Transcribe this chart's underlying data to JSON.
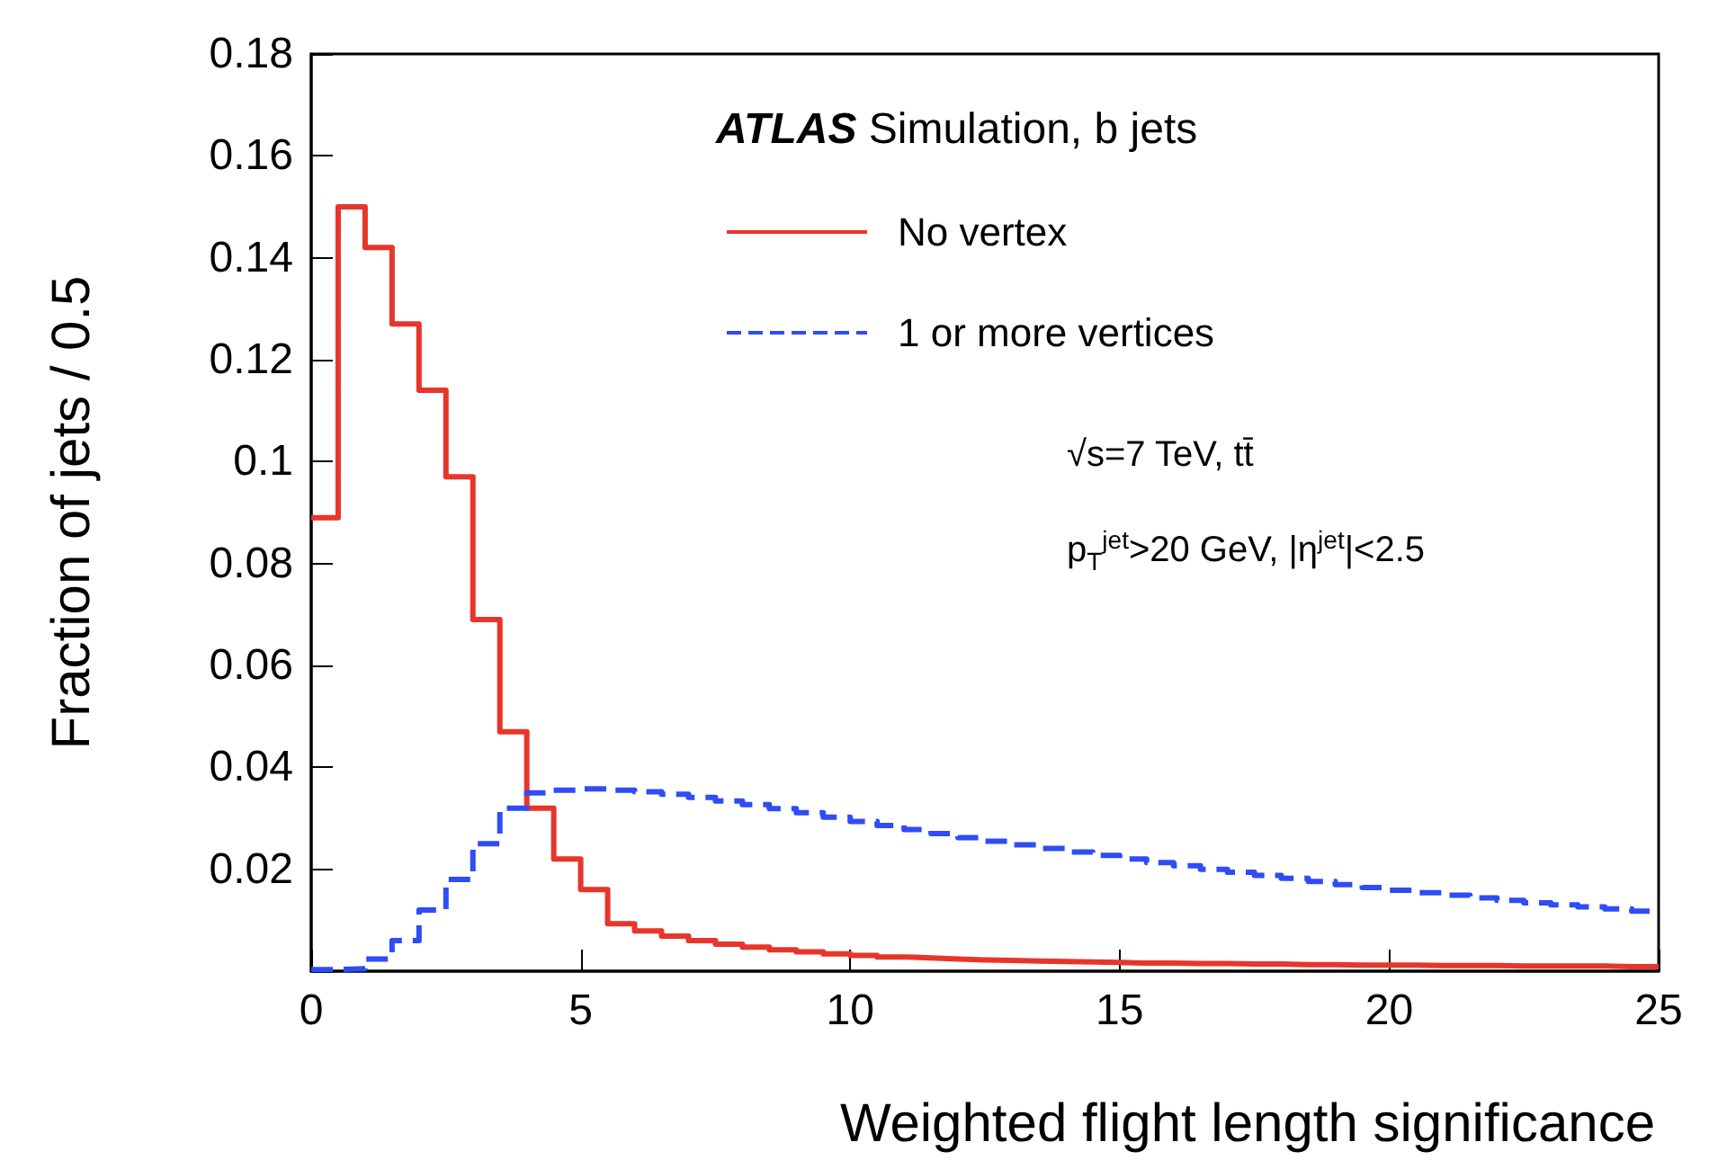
{
  "chart_data": {
    "type": "histogram",
    "xlabel": "Weighted flight length significance",
    "ylabel": "Fraction of jets / 0.5",
    "annotations": [
      "ATLAS Simulation, b jets",
      "√s=7 TeV, tt̄",
      "p$_{T}$$^{jet}$>20 GeV, |η$^{jet}$|<2.5"
    ],
    "bins": [
      0,
      0.5,
      1,
      1.5,
      2,
      2.5,
      3,
      3.5,
      4,
      4.5,
      5,
      5.5,
      6,
      6.5,
      7,
      7.5,
      8,
      8.5,
      9,
      9.5,
      10,
      10.5,
      11,
      11.5,
      12,
      12.5,
      13,
      13.5,
      14,
      14.5,
      15,
      15.5,
      16,
      16.5,
      17,
      17.5,
      18,
      18.5,
      19,
      19.5,
      20,
      20.5,
      21,
      21.5,
      22,
      22.5,
      23,
      23.5,
      24,
      24.5,
      25
    ],
    "series": [
      {
        "name": "No vertex",
        "color": "#e8352b",
        "line_style": "solid",
        "values": [
          0.089,
          0.15,
          0.142,
          0.127,
          0.114,
          0.097,
          0.069,
          0.047,
          0.032,
          0.022,
          0.016,
          0.0093,
          0.0079,
          0.0069,
          0.006,
          0.0053,
          0.0047,
          0.0042,
          0.0038,
          0.0034,
          0.0031,
          0.0028,
          0.0026,
          0.0024,
          0.0022,
          0.0021,
          0.002,
          0.0019,
          0.0018,
          0.0017,
          0.0016,
          0.0016,
          0.0015,
          0.0015,
          0.0014,
          0.0014,
          0.0013,
          0.0013,
          0.0012,
          0.0012,
          0.0012,
          0.0011,
          0.0011,
          0.0011,
          0.001,
          0.001,
          0.001,
          0.001,
          0.0009,
          0.0009
        ]
      },
      {
        "name": "1 or more vertices",
        "color": "#2f4cf5",
        "line_style": "dashed",
        "values": [
          0.0003,
          0.0005,
          0.0024,
          0.006,
          0.012,
          0.018,
          0.025,
          0.032,
          0.035,
          0.0355,
          0.0358,
          0.0355,
          0.0352,
          0.0347,
          0.0341,
          0.0334,
          0.0327,
          0.0319,
          0.0311,
          0.0302,
          0.0294,
          0.0286,
          0.0278,
          0.027,
          0.0262,
          0.0255,
          0.0248,
          0.0241,
          0.0234,
          0.0227,
          0.022,
          0.0213,
          0.0207,
          0.02,
          0.0194,
          0.0188,
          0.0182,
          0.0176,
          0.017,
          0.0164,
          0.0159,
          0.0154,
          0.0149,
          0.0144,
          0.0139,
          0.0134,
          0.013,
          0.0126,
          0.0122,
          0.0118
        ]
      }
    ],
    "xlim": [
      0,
      25
    ],
    "xticks": [
      0,
      5,
      10,
      15,
      20,
      25
    ],
    "ylim": [
      0,
      0.18
    ],
    "yticks": [
      {
        "value": 0,
        "label": null
      },
      0.02,
      0.04,
      0.06,
      0.08,
      0.1,
      0.12,
      0.14,
      0.16,
      0.18
    ],
    "grid": false,
    "legend": "top",
    "marker": "none"
  }
}
